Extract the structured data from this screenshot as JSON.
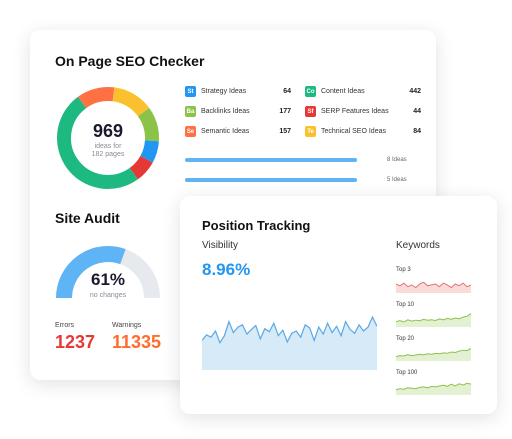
{
  "seo_checker": {
    "title": "On Page SEO Checker",
    "donut": {
      "value": "969",
      "sub_line1": "ideas for",
      "sub_line2": "182 pages"
    },
    "ideas": [
      {
        "abbr": "St",
        "label": "Strategy Ideas",
        "value": "64",
        "color": "#2196f3"
      },
      {
        "abbr": "Ba",
        "label": "Backlinks Ideas",
        "value": "177",
        "color": "#8bc34a"
      },
      {
        "abbr": "Se",
        "label": "Semantic Ideas",
        "value": "157",
        "color": "#ff7043"
      },
      {
        "abbr": "Co",
        "label": "Content Ideas",
        "value": "442",
        "color": "#1eb980"
      },
      {
        "abbr": "Sf",
        "label": "SERP Features Ideas",
        "value": "44",
        "color": "#e53935"
      },
      {
        "abbr": "Te",
        "label": "Technical SEO Ideas",
        "value": "84",
        "color": "#fbc02d"
      }
    ],
    "progress": [
      {
        "label": "8 Ideas",
        "fraction": 1.0
      },
      {
        "label": "5 Ideas",
        "fraction": 1.0
      }
    ],
    "segment_colors": [
      "#1eb980",
      "#ff7043",
      "#fbc02d",
      "#8bc34a",
      "#2196f3",
      "#e53935"
    ]
  },
  "site_audit": {
    "title": "Site Audit",
    "gauge": {
      "value": "61%",
      "sub": "no changes",
      "fraction": 0.61,
      "color": "#5fb4f5",
      "track": "#e6e9ee"
    },
    "errors_label": "Errors",
    "errors_value": "1237",
    "errors_color": "#e53935",
    "warnings_label": "Warnings",
    "warnings_value": "11335",
    "warnings_color": "#ff6d2d"
  },
  "position_tracking": {
    "title": "Position Tracking",
    "visibility_label": "Visibility",
    "visibility_value": "8.96%",
    "visibility_color": "#2196f3",
    "visibility_series": [
      0.38,
      0.45,
      0.42,
      0.5,
      0.35,
      0.44,
      0.62,
      0.48,
      0.55,
      0.58,
      0.46,
      0.52,
      0.57,
      0.4,
      0.53,
      0.49,
      0.6,
      0.44,
      0.51,
      0.36,
      0.47,
      0.5,
      0.42,
      0.58,
      0.54,
      0.38,
      0.55,
      0.46,
      0.6,
      0.48,
      0.56,
      0.44,
      0.62,
      0.52,
      0.47,
      0.58,
      0.5,
      0.55,
      0.68,
      0.56
    ],
    "keywords_label": "Keywords",
    "keyword_groups": [
      {
        "label": "Top 3",
        "color": "#e57373",
        "fill": "#fbdada",
        "series": [
          0.5,
          0.4,
          0.55,
          0.35,
          0.45,
          0.3,
          0.5,
          0.6,
          0.4,
          0.45,
          0.5,
          0.35,
          0.55,
          0.45,
          0.3,
          0.5,
          0.4,
          0.55,
          0.35,
          0.45
        ]
      },
      {
        "label": "Top 10",
        "color": "#8bc34a",
        "fill": "#e3f1d2",
        "series": [
          0.3,
          0.35,
          0.28,
          0.4,
          0.33,
          0.38,
          0.35,
          0.42,
          0.37,
          0.4,
          0.36,
          0.45,
          0.4,
          0.48,
          0.43,
          0.5,
          0.46,
          0.55,
          0.6,
          0.75
        ]
      },
      {
        "label": "Top 20",
        "color": "#8bc34a",
        "fill": "#e3f1d2",
        "series": [
          0.25,
          0.3,
          0.28,
          0.35,
          0.3,
          0.33,
          0.38,
          0.34,
          0.4,
          0.37,
          0.42,
          0.4,
          0.45,
          0.43,
          0.5,
          0.47,
          0.55,
          0.6,
          0.58,
          0.7
        ]
      },
      {
        "label": "Top 100",
        "color": "#8bc34a",
        "fill": "#e3f1d2",
        "series": [
          0.3,
          0.35,
          0.32,
          0.4,
          0.38,
          0.35,
          0.42,
          0.45,
          0.4,
          0.48,
          0.45,
          0.5,
          0.55,
          0.48,
          0.6,
          0.5,
          0.62,
          0.55,
          0.65,
          0.6
        ]
      }
    ]
  }
}
